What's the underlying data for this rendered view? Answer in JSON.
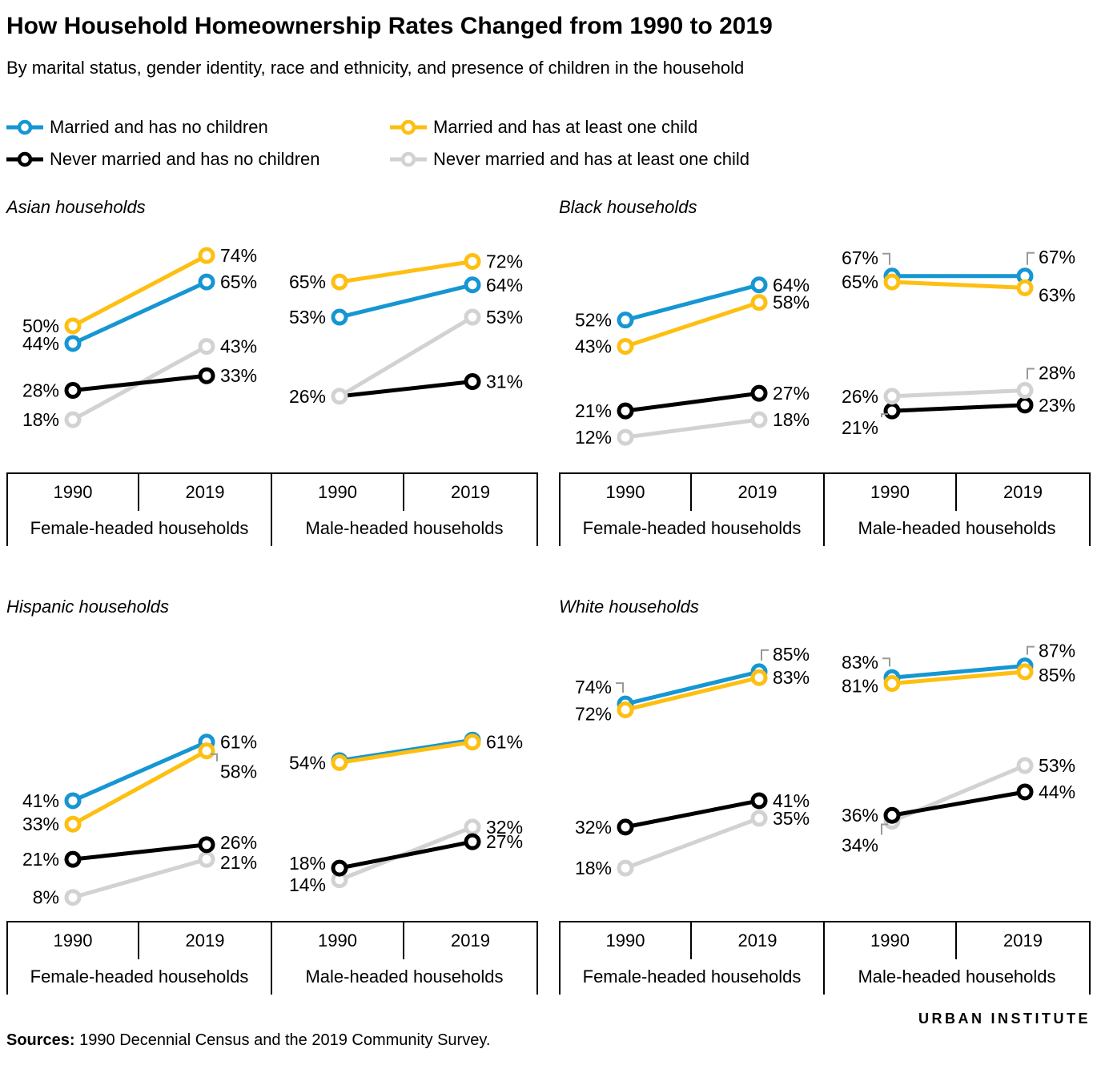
{
  "title": "How Household Homeownership Rates Changed from 1990 to 2019",
  "subtitle": "By marital status, gender identity, race and ethnicity, and presence of children in the household",
  "legend": [
    {
      "key": "married_no_children",
      "label": "Married and has no children",
      "color": "#1696d2"
    },
    {
      "key": "married_child",
      "label": "Married and has at least one child",
      "color": "#fdbf11"
    },
    {
      "key": "never_married_no_children",
      "label": "Never married and has no children",
      "color": "#000000"
    },
    {
      "key": "never_married_child",
      "label": "Never married and has at least one child",
      "color": "#d2d2d2"
    }
  ],
  "axis": {
    "years": [
      "1990",
      "2019"
    ]
  },
  "chart_data": {
    "type": "line",
    "x": [
      1990,
      2019
    ],
    "unit": "%",
    "ylim": [
      0,
      100
    ],
    "grid": false,
    "legend_position": "top",
    "panels": [
      {
        "title": "Asian households",
        "groups": [
          {
            "name": "Female-headed households",
            "series": [
              {
                "key": "never_married_child",
                "values": [
                  18,
                  43
                ]
              },
              {
                "key": "never_married_no_children",
                "values": [
                  28,
                  33
                ]
              },
              {
                "key": "married_no_children",
                "values": [
                  44,
                  65
                ]
              },
              {
                "key": "married_child",
                "values": [
                  50,
                  74
                ]
              }
            ]
          },
          {
            "name": "Male-headed households",
            "series": [
              {
                "key": "never_married_no_children",
                "values": [
                  26,
                  31
                ],
                "label_hidden": [
                  true,
                  false
                ],
                "marker_hidden": [
                  true,
                  false
                ]
              },
              {
                "key": "never_married_child",
                "values": [
                  26,
                  53
                ]
              },
              {
                "key": "married_no_children",
                "values": [
                  53,
                  64
                ]
              },
              {
                "key": "married_child",
                "values": [
                  65,
                  72
                ]
              }
            ]
          }
        ]
      },
      {
        "title": "Black households",
        "groups": [
          {
            "name": "Female-headed households",
            "series": [
              {
                "key": "never_married_child",
                "values": [
                  12,
                  18
                ]
              },
              {
                "key": "never_married_no_children",
                "values": [
                  21,
                  27
                ]
              },
              {
                "key": "married_no_children",
                "values": [
                  52,
                  64
                ]
              },
              {
                "key": "married_child",
                "values": [
                  43,
                  58
                ]
              }
            ]
          },
          {
            "name": "Male-headed households",
            "series": [
              {
                "key": "never_married_no_children",
                "values": [
                  21,
                  23
                ],
                "label_dy": [
                  21,
                  0
                ],
                "leader": [
                  true,
                  false
                ]
              },
              {
                "key": "never_married_child",
                "values": [
                  26,
                  28
                ],
                "label_dy": [
                  0,
                  -22
                ],
                "leader": [
                  false,
                  true
                ]
              },
              {
                "key": "married_no_children",
                "values": [
                  67,
                  67
                ],
                "label_dy": [
                  -23,
                  -24
                ],
                "leader": [
                  true,
                  true
                ]
              },
              {
                "key": "married_child",
                "values": [
                  65,
                  63
                ],
                "label_dy": [
                  0,
                  9
                ]
              }
            ]
          }
        ]
      },
      {
        "title": "Hispanic households",
        "groups": [
          {
            "name": "Female-headed households",
            "series": [
              {
                "key": "never_married_child",
                "values": [
                  8,
                  21
                ],
                "label_dy": [
                  0,
                  4
                ]
              },
              {
                "key": "never_married_no_children",
                "values": [
                  21,
                  26
                ],
                "label_dy": [
                  0,
                  -3
                ]
              },
              {
                "key": "married_no_children",
                "values": [
                  41,
                  61
                ]
              },
              {
                "key": "married_child",
                "values": [
                  33,
                  58
                ],
                "label_dy": [
                  0,
                  26
                ],
                "leader": [
                  false,
                  true
                ]
              }
            ]
          },
          {
            "name": "Male-headed households",
            "series": [
              {
                "key": "never_married_child",
                "values": [
                  14,
                  32
                ],
                "label_dy": [
                  6,
                  0
                ]
              },
              {
                "key": "never_married_no_children",
                "values": [
                  18,
                  27
                ],
                "label_dy": [
                  -6,
                  0
                ]
              },
              {
                "key": "married_no_children",
                "values": [
                  54,
                  61
                ],
                "label_hidden": [
                  true,
                  true
                ],
                "render_dy": -2.5
              },
              {
                "key": "married_child",
                "values": [
                  54,
                  61
                ]
              }
            ]
          }
        ]
      },
      {
        "title": "White households",
        "groups": [
          {
            "name": "Female-headed households",
            "series": [
              {
                "key": "never_married_child",
                "values": [
                  18,
                  35
                ]
              },
              {
                "key": "never_married_no_children",
                "values": [
                  32,
                  41
                ]
              },
              {
                "key": "married_no_children",
                "values": [
                  74,
                  85
                ],
                "label_dy": [
                  -21,
                  -22
                ],
                "leader": [
                  true,
                  true
                ]
              },
              {
                "key": "married_child",
                "values": [
                  72,
                  83
                ],
                "label_dy": [
                  5,
                  0
                ]
              }
            ]
          },
          {
            "name": "Male-headed households",
            "series": [
              {
                "key": "never_married_child",
                "values": [
                  34,
                  53
                ],
                "label_dy": [
                  30,
                  0
                ],
                "leader": [
                  true,
                  false
                ]
              },
              {
                "key": "never_married_no_children",
                "values": [
                  36,
                  44
                ]
              },
              {
                "key": "married_no_children",
                "values": [
                  83,
                  87
                ],
                "label_dy": [
                  -19,
                  -19
                ],
                "leader": [
                  true,
                  true
                ]
              },
              {
                "key": "married_child",
                "values": [
                  81,
                  85
                ],
                "label_dy": [
                  3,
                  4
                ]
              }
            ]
          }
        ]
      }
    ]
  },
  "footer": {
    "logo_urban": "URBAN",
    "logo_institute": "INSTITUTE",
    "sources_bold": "Sources:",
    "sources_text": " 1990 Decennial Census and the 2019 Community Survey."
  }
}
